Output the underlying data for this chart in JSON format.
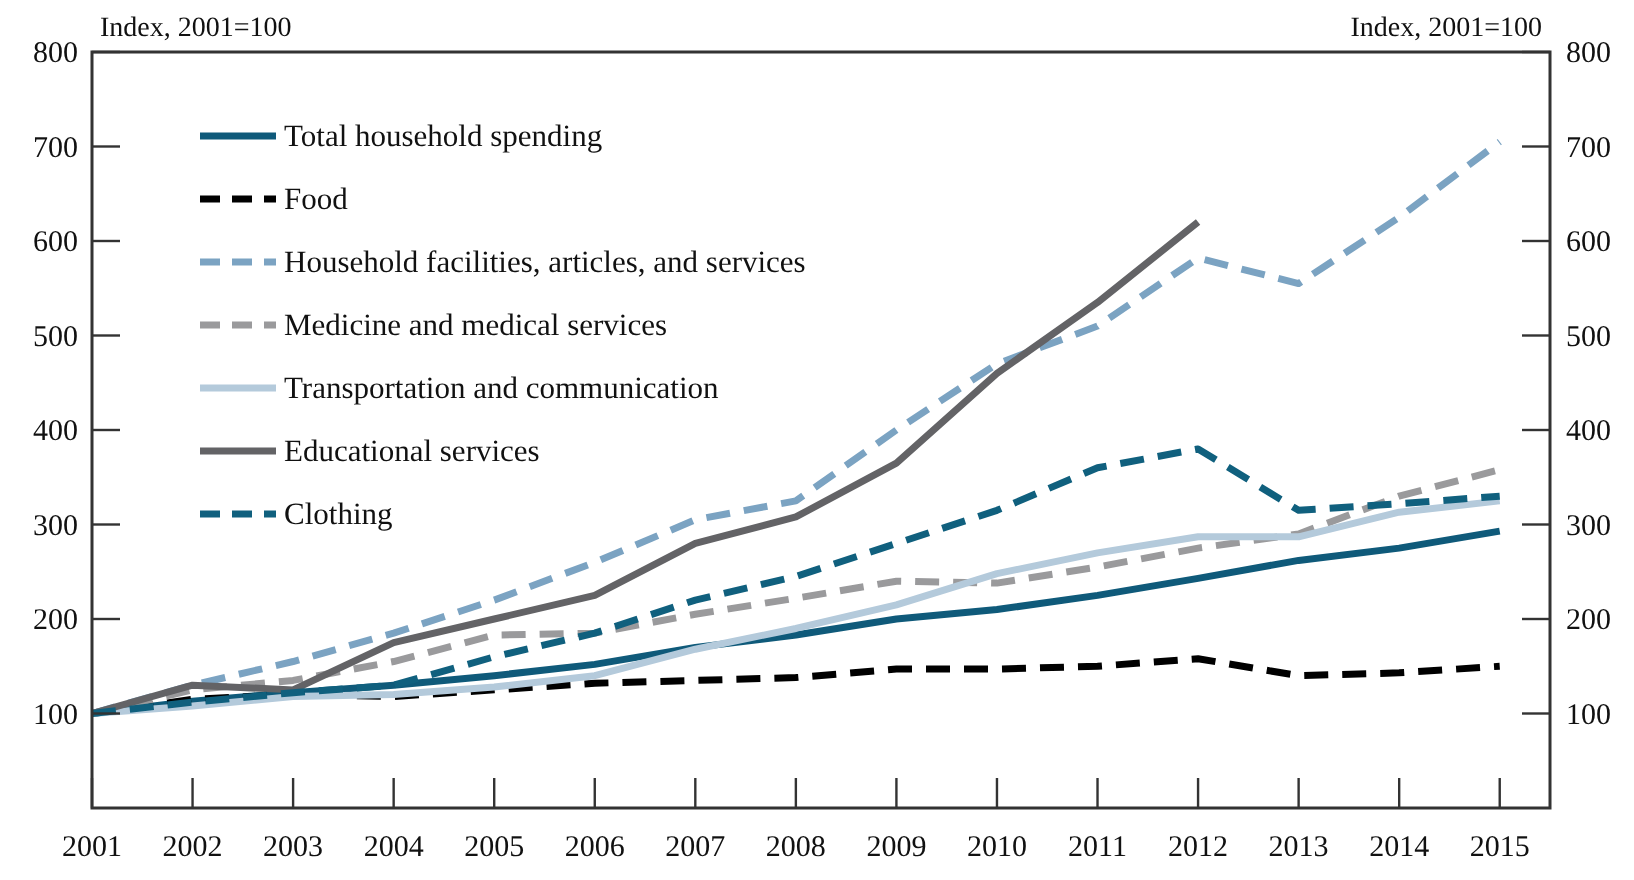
{
  "chart_data": {
    "type": "line",
    "ylabel": "Index, 2001=100",
    "y2label": "Index, 2001=100",
    "x": [
      2001,
      2002,
      2003,
      2004,
      2005,
      2006,
      2007,
      2008,
      2009,
      2010,
      2011,
      2012,
      2013,
      2014,
      2015
    ],
    "xlim": [
      2001,
      2015.5
    ],
    "xticks": [
      2001,
      2002,
      2003,
      2004,
      2005,
      2006,
      2007,
      2008,
      2009,
      2010,
      2011,
      2012,
      2013,
      2014,
      2015
    ],
    "ylim": [
      0,
      800
    ],
    "yticks": [
      100,
      200,
      300,
      400,
      500,
      600,
      700,
      800
    ],
    "y2lim": [
      0,
      800
    ],
    "y2ticks": [
      100,
      200,
      300,
      400,
      500,
      600,
      700,
      800
    ],
    "legend": "top left",
    "grid": false,
    "marker": "none",
    "series": [
      {
        "name": "Total household spending",
        "color": "#0f5a7a",
        "line_style": "solid",
        "values": [
          100,
          113,
          122,
          130,
          140,
          152,
          170,
          183,
          200,
          210,
          225,
          243,
          262,
          275,
          293
        ]
      },
      {
        "name": "Food",
        "color": "#000000",
        "line_style": "dashed",
        "values": [
          100,
          115,
          120,
          118,
          125,
          132,
          135,
          138,
          147,
          147,
          150,
          158,
          140,
          143,
          150
        ]
      },
      {
        "name": "Household facilities, articles, and services",
        "color": "#7ba3c2",
        "line_style": "dashed",
        "values": [
          100,
          130,
          155,
          185,
          220,
          260,
          305,
          325,
          400,
          470,
          510,
          582,
          555,
          625,
          705
        ]
      },
      {
        "name": "Medicine and medical services",
        "color": "#9a9a9c",
        "line_style": "dashed",
        "values": [
          100,
          125,
          135,
          155,
          183,
          185,
          205,
          222,
          240,
          238,
          255,
          275,
          290,
          330,
          358
        ]
      },
      {
        "name": "Transportation and communication",
        "color": "#b4cadb",
        "line_style": "solid",
        "values": [
          100,
          108,
          118,
          120,
          128,
          140,
          168,
          190,
          215,
          248,
          270,
          287,
          287,
          313,
          325
        ]
      },
      {
        "name": "Educational services",
        "color": "#636366",
        "line_style": "solid",
        "values": [
          100,
          130,
          125,
          175,
          200,
          225,
          280,
          308,
          365,
          460,
          535,
          620,
          null,
          null,
          null
        ]
      },
      {
        "name": "Clothing",
        "color": "#10607e",
        "line_style": "dashed",
        "values": [
          100,
          112,
          122,
          130,
          160,
          185,
          220,
          245,
          280,
          315,
          360,
          380,
          315,
          322,
          330
        ]
      }
    ]
  }
}
